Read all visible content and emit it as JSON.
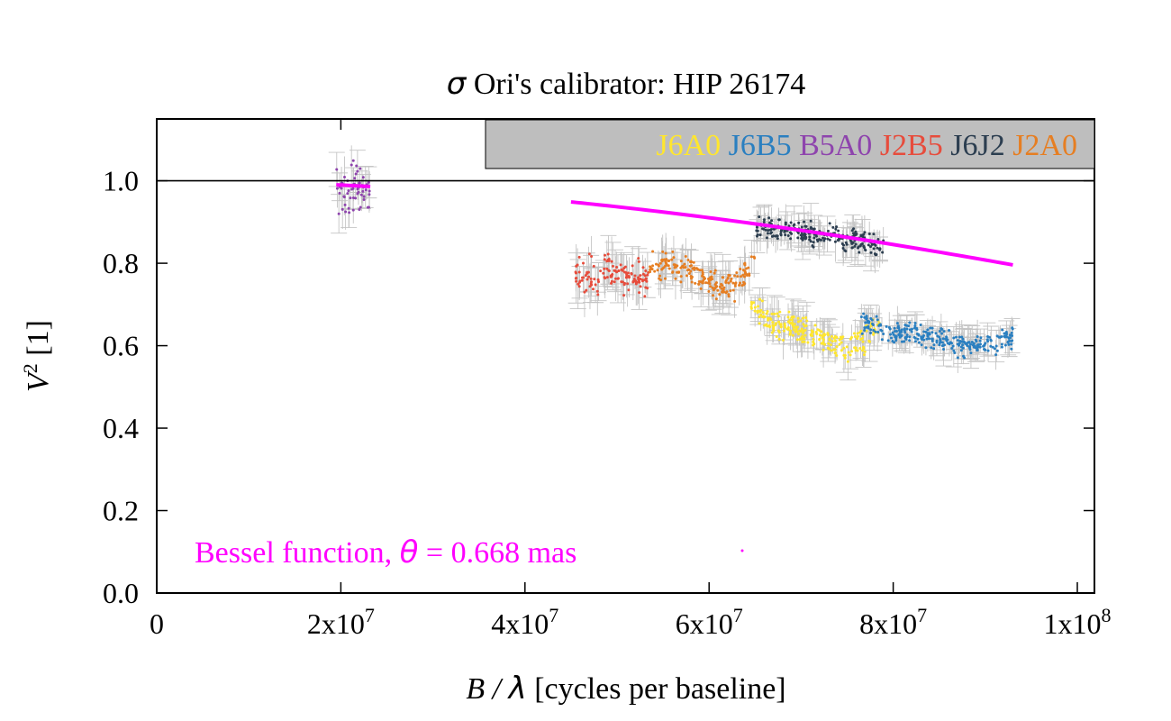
{
  "chart_data": {
    "type": "scatter",
    "title": {
      "symbol": "σ",
      "text": " Ori's calibrator: HIP 26174"
    },
    "xlabel": {
      "b": "B",
      "slash": " / ",
      "lambda": "λ",
      "text": " [cycles per baseline]"
    },
    "ylabel": {
      "v": "V",
      "sup": "2",
      "text": " [1]"
    },
    "xlim": [
      0,
      100000000
    ],
    "ylim": [
      0,
      1.15
    ],
    "x_ticks": [
      {
        "value": 0,
        "base": "0",
        "exp": ""
      },
      {
        "value": 20000000,
        "base": "2x10",
        "exp": "7"
      },
      {
        "value": 40000000,
        "base": "4x10",
        "exp": "7"
      },
      {
        "value": 60000000,
        "base": "6x10",
        "exp": "7"
      },
      {
        "value": 80000000,
        "base": "8x10",
        "exp": "7"
      },
      {
        "value": 100000000,
        "base": "1x10",
        "exp": "8"
      }
    ],
    "y_ticks": [
      {
        "value": 0.0,
        "label": "0.0"
      },
      {
        "value": 0.2,
        "label": "0.2"
      },
      {
        "value": 0.4,
        "label": "0.4"
      },
      {
        "value": 0.6,
        "label": "0.6"
      },
      {
        "value": 0.8,
        "label": "0.8"
      },
      {
        "value": 1.0,
        "label": "1.0"
      }
    ],
    "reference_line": {
      "y": 1.0
    },
    "legend": {
      "placement": "top-right",
      "background": "#bebebe",
      "entries": [
        {
          "name": "J6A0",
          "color": "#ffe62e"
        },
        {
          "name": "J6B5",
          "color": "#2a7fc0"
        },
        {
          "name": "B5A0",
          "color": "#8e44ad"
        },
        {
          "name": "J2B5",
          "color": "#e74c3c"
        },
        {
          "name": "J6J2",
          "color": "#2c3e50"
        },
        {
          "name": "J2A0",
          "color": "#e67e22"
        }
      ]
    },
    "series": [
      {
        "name": "B5A0",
        "color": "#8e44ad",
        "x": [
          19500000,
          20500000,
          21500000,
          22500000,
          23200000
        ],
        "y": [
          0.98,
          0.97,
          0.99,
          0.98,
          0.97
        ],
        "yspread": 0.04,
        "err": 0.04
      },
      {
        "name": "J2B5",
        "color": "#e74c3c",
        "x": [
          45500000,
          47000000,
          49000000,
          51000000,
          53500000
        ],
        "y": [
          0.78,
          0.77,
          0.78,
          0.76,
          0.76
        ],
        "yspread": 0.03,
        "err": 0.045
      },
      {
        "name": "J2A0",
        "color": "#e67e22",
        "x": [
          53500000,
          55000000,
          57000000,
          59000000,
          61000000,
          62500000,
          64000000,
          65000000
        ],
        "y": [
          0.79,
          0.8,
          0.79,
          0.77,
          0.74,
          0.74,
          0.78,
          0.82
        ],
        "yspread": 0.025,
        "err": 0.04
      },
      {
        "name": "J6A0",
        "color": "#ffe62e",
        "x": [
          64500000,
          66000000,
          68000000,
          70000000,
          72000000,
          74000000,
          76000000,
          77500000,
          78500000
        ],
        "y": [
          0.7,
          0.67,
          0.65,
          0.64,
          0.62,
          0.6,
          0.6,
          0.63,
          0.66
        ],
        "yspread": 0.025,
        "err": 0.035
      },
      {
        "name": "J6J2",
        "color": "#2c3e50",
        "x": [
          65000000,
          67000000,
          69000000,
          71000000,
          73000000,
          75000000,
          77000000,
          79000000
        ],
        "y": [
          0.89,
          0.88,
          0.88,
          0.87,
          0.87,
          0.86,
          0.85,
          0.84
        ],
        "yspread": 0.02,
        "err": 0.035
      },
      {
        "name": "J6B5",
        "color": "#2a7fc0",
        "x": [
          76500000,
          78000000,
          80000000,
          82000000,
          84000000,
          86000000,
          88000000,
          90000000,
          92000000,
          93000000
        ],
        "y": [
          0.66,
          0.65,
          0.63,
          0.64,
          0.62,
          0.61,
          0.6,
          0.6,
          0.61,
          0.62
        ],
        "yspread": 0.02,
        "err": 0.03
      }
    ],
    "bessel_fit": {
      "color": "#ff00ff",
      "label_prefix": "Bessel function, ",
      "label_symbol": "θ",
      "label_suffix": " = 0.668 mas",
      "theta_mas": 0.668,
      "segments": [
        {
          "x": [
            19500000,
            23200000
          ]
        },
        {
          "x": [
            45000000,
            93000000
          ]
        }
      ]
    }
  }
}
